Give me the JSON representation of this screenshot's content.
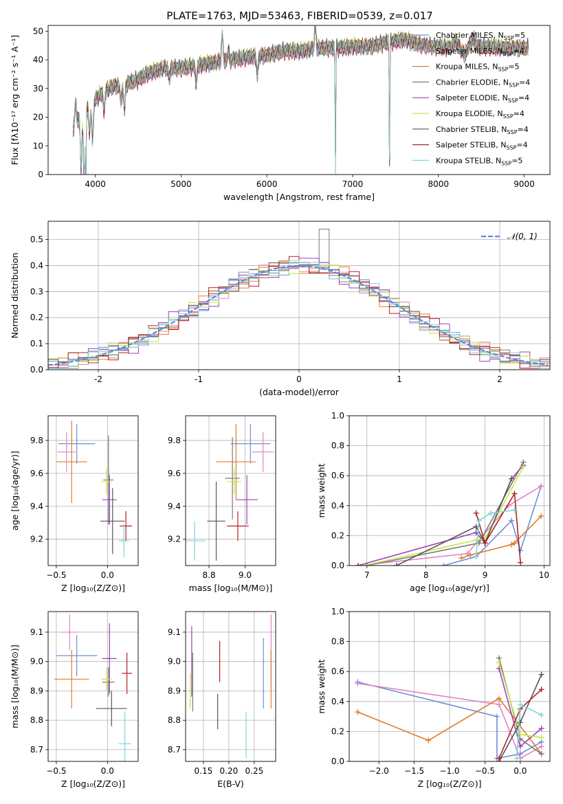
{
  "figure_title": "PLATE=1763, MJD=53463, FIBERID=0539, z=0.017",
  "colors": {
    "Chabrier MILES": "#6a8fd8",
    "Salpeter MILES": "#e083c2",
    "Kroupa MILES": "#e07b2a",
    "Chabrier ELODIE": "#7a7a7a",
    "Salpeter ELODIE": "#9b3fb8",
    "Kroupa ELODIE": "#c5e84a",
    "Chabrier STELIB": "#555555",
    "Salpeter STELIB": "#b22222",
    "Kroupa STELIB": "#7fd6d9",
    "normal": "#5b8bd6"
  },
  "chart_data": [
    {
      "id": "spectrum",
      "type": "line",
      "xlabel": "wavelength [Angstrom, rest frame]",
      "ylabel": "Flux [fλ10⁻¹⁷ erg cm⁻² s⁻¹ A⁻¹]",
      "xlim": [
        3450,
        9300
      ],
      "ylim": [
        0,
        52
      ],
      "xticks": [
        4000,
        5000,
        6000,
        7000,
        8000,
        9000
      ],
      "yticks": [
        0,
        10,
        20,
        30,
        40,
        50
      ],
      "legend_position": "top-right",
      "legend": [
        {
          "name": "Chabrier MILES",
          "label": "Chabrier MILES, N_SSP=5"
        },
        {
          "name": "Salpeter MILES",
          "label": "Salpeter MILES, N_SSP=4"
        },
        {
          "name": "Kroupa MILES",
          "label": "Kroupa MILES, N_SSP=5"
        },
        {
          "name": "Chabrier ELODIE",
          "label": "Chabrier ELODIE, N_SSP=4"
        },
        {
          "name": "Salpeter ELODIE",
          "label": "Salpeter ELODIE, N_SSP=4"
        },
        {
          "name": "Kroupa ELODIE",
          "label": "Kroupa ELODIE, N_SSP=4"
        },
        {
          "name": "Chabrier STELIB",
          "label": "Chabrier STELIB, N_SSP=4"
        },
        {
          "name": "Salpeter STELIB",
          "label": "Salpeter STELIB, N_SSP=4"
        },
        {
          "name": "Kroupa STELIB",
          "label": "Kroupa STELIB, N_SSP=5"
        }
      ],
      "continuum": [
        [
          3750,
          16
        ],
        [
          3800,
          19
        ],
        [
          3850,
          22
        ],
        [
          3900,
          23
        ],
        [
          3950,
          25
        ],
        [
          4000,
          26
        ],
        [
          4100,
          29
        ],
        [
          4200,
          30.5
        ],
        [
          4300,
          31
        ],
        [
          4400,
          32
        ],
        [
          4500,
          33
        ],
        [
          4600,
          35
        ],
        [
          4800,
          37
        ],
        [
          5000,
          37
        ],
        [
          5200,
          38
        ],
        [
          5400,
          39
        ],
        [
          5600,
          40
        ],
        [
          5800,
          41
        ],
        [
          6000,
          41.5
        ],
        [
          6200,
          43
        ],
        [
          6400,
          43
        ],
        [
          6600,
          44
        ],
        [
          6800,
          44
        ],
        [
          7000,
          44.5
        ],
        [
          7200,
          44.5
        ],
        [
          7400,
          46
        ],
        [
          7600,
          47
        ],
        [
          7800,
          45
        ],
        [
          8000,
          44.5
        ],
        [
          8200,
          44
        ],
        [
          8400,
          44.5
        ],
        [
          8600,
          44.5
        ],
        [
          8800,
          44
        ],
        [
          9000,
          44
        ],
        [
          9050,
          44
        ]
      ],
      "features": [
        {
          "x": 3770,
          "depth": -8
        },
        {
          "x": 3835,
          "depth": 20
        },
        {
          "x": 3870,
          "depth": 25
        },
        {
          "x": 3890,
          "depth": 30
        },
        {
          "x": 3933,
          "depth": 10
        },
        {
          "x": 3968,
          "depth": 14
        },
        {
          "x": 4102,
          "depth": 7
        },
        {
          "x": 4300,
          "depth": 6
        },
        {
          "x": 4340,
          "depth": 9
        },
        {
          "x": 4861,
          "depth": 4
        },
        {
          "x": 5175,
          "depth": 6
        },
        {
          "x": 5480,
          "depth": -9
        },
        {
          "x": 5550,
          "depth": -3
        },
        {
          "x": 5890,
          "depth": 7
        },
        {
          "x": 6563,
          "depth": -8
        },
        {
          "x": 6800,
          "depth": 44
        },
        {
          "x": 7430,
          "depth": 46
        }
      ],
      "y_offsets": [
        0.1,
        -0.3,
        0.4,
        -0.2,
        0.2,
        0.5,
        0.6,
        -0.5,
        -0.1
      ]
    },
    {
      "id": "residuals",
      "type": "histogram",
      "xlabel": "(data-model)/error",
      "ylabel": "Normed distribution",
      "xlim": [
        -2.5,
        2.5
      ],
      "ylim": [
        0,
        0.57
      ],
      "xticks": [
        -2,
        -1,
        0,
        1,
        2
      ],
      "yticks": [
        0.0,
        0.1,
        0.2,
        0.3,
        0.4,
        0.5
      ],
      "bin_width": 0.1,
      "legend_position": "top-right",
      "legend": [
        {
          "name": "normal",
          "label": "𝒩(0, 1)"
        }
      ],
      "peak": {
        "x": 0.25,
        "y": 0.54
      },
      "jitter": [
        0.02,
        -0.018,
        0.025,
        -0.015,
        0.03,
        -0.02,
        0.012,
        -0.028,
        0.018
      ]
    },
    {
      "id": "age-vs-Z",
      "type": "errorbar",
      "xlabel": "Z [log₁₀(Z/Z⊙)]",
      "ylabel": "age  [log₁₀(age/yr)]",
      "xlim": [
        -0.58,
        0.3
      ],
      "ylim": [
        9.04,
        9.95
      ],
      "xticks": [
        -0.5,
        0.0
      ],
      "yticks": [
        9.2,
        9.4,
        9.6,
        9.8
      ],
      "points": [
        {
          "name": "Chabrier MILES",
          "x": -0.3,
          "xerr": 0.18,
          "y": 9.78,
          "yerr": 0.12
        },
        {
          "name": "Salpeter MILES",
          "x": -0.4,
          "xerr": 0.09,
          "y": 9.73,
          "yerr": 0.12
        },
        {
          "name": "Kroupa MILES",
          "x": -0.35,
          "xerr": 0.15,
          "y": 9.67,
          "yerr": 0.25
        },
        {
          "name": "Chabrier ELODIE",
          "x": 0.01,
          "xerr": 0.05,
          "y": 9.56,
          "yerr": 0.27
        },
        {
          "name": "Salpeter ELODIE",
          "x": 0.02,
          "xerr": 0.07,
          "y": 9.44,
          "yerr": 0.15
        },
        {
          "name": "Kroupa ELODIE",
          "x": -0.01,
          "xerr": 0.05,
          "y": 9.55,
          "yerr": 0.08
        },
        {
          "name": "Chabrier STELIB",
          "x": 0.05,
          "xerr": 0.12,
          "y": 9.31,
          "yerr": 0.2
        },
        {
          "name": "Salpeter STELIB",
          "x": 0.18,
          "xerr": 0.06,
          "y": 9.28,
          "yerr": 0.09
        },
        {
          "name": "Kroupa STELIB",
          "x": 0.16,
          "xerr": 0.05,
          "y": 9.19,
          "yerr": 0.1
        }
      ]
    },
    {
      "id": "age-vs-mass",
      "type": "errorbar",
      "xlabel": "mass [log₁₀(M/M⊙)]",
      "ylabel": "",
      "xlim": [
        8.67,
        9.17
      ],
      "ylim": [
        9.04,
        9.95
      ],
      "xticks": [
        8.8,
        9.0
      ],
      "yticks": [
        9.2,
        9.4,
        9.6,
        9.8
      ],
      "points": [
        {
          "name": "Chabrier MILES",
          "x": 9.03,
          "xerr": 0.11,
          "y": 9.78,
          "yerr": 0.12
        },
        {
          "name": "Salpeter MILES",
          "x": 9.1,
          "xerr": 0.06,
          "y": 9.73,
          "yerr": 0.12
        },
        {
          "name": "Kroupa MILES",
          "x": 8.95,
          "xerr": 0.11,
          "y": 9.67,
          "yerr": 0.23
        },
        {
          "name": "Chabrier ELODIE",
          "x": 8.93,
          "xerr": 0.04,
          "y": 9.57,
          "yerr": 0.25
        },
        {
          "name": "Salpeter ELODIE",
          "x": 9.01,
          "xerr": 0.06,
          "y": 9.44,
          "yerr": 0.15
        },
        {
          "name": "Kroupa ELODIE",
          "x": 8.94,
          "xerr": 0.04,
          "y": 9.55,
          "yerr": 0.08
        },
        {
          "name": "Chabrier STELIB",
          "x": 8.84,
          "xerr": 0.05,
          "y": 9.31,
          "yerr": 0.24
        },
        {
          "name": "Salpeter STELIB",
          "x": 8.96,
          "xerr": 0.06,
          "y": 9.28,
          "yerr": 0.09
        },
        {
          "name": "Kroupa STELIB",
          "x": 8.72,
          "xerr": 0.06,
          "y": 9.19,
          "yerr": 0.12
        }
      ]
    },
    {
      "id": "massweight-vs-age",
      "type": "line",
      "xlabel": "age  [log₁₀(age/yr)]",
      "ylabel": "mass weight",
      "xlim": [
        6.7,
        10.1
      ],
      "ylim": [
        0,
        1
      ],
      "xticks": [
        7,
        8,
        9,
        10
      ],
      "yticks": [
        0.0,
        0.2,
        0.4,
        0.6,
        0.8,
        1.0
      ],
      "series": [
        {
          "name": "Chabrier MILES",
          "points": [
            [
              8.3,
              0.0
            ],
            [
              8.85,
              0.06
            ],
            [
              9.45,
              0.3
            ],
            [
              9.6,
              0.1
            ],
            [
              9.95,
              0.53
            ]
          ]
        },
        {
          "name": "Salpeter MILES",
          "points": [
            [
              6.85,
              0.0
            ],
            [
              8.7,
              0.08
            ],
            [
              9.4,
              0.4
            ],
            [
              9.95,
              0.53
            ]
          ]
        },
        {
          "name": "Kroupa MILES",
          "points": [
            [
              8.6,
              0.05
            ],
            [
              8.75,
              0.07
            ],
            [
              9.45,
              0.14
            ],
            [
              9.5,
              0.15
            ],
            [
              9.95,
              0.33
            ]
          ]
        },
        {
          "name": "Chabrier ELODIE",
          "points": [
            [
              7.0,
              0.0
            ],
            [
              8.9,
              0.15
            ],
            [
              9.65,
              0.69
            ]
          ]
        },
        {
          "name": "Salpeter ELODIE",
          "points": [
            [
              6.85,
              0.0
            ],
            [
              8.85,
              0.22
            ],
            [
              9.0,
              0.15
            ],
            [
              9.45,
              0.58
            ],
            [
              9.65,
              0.67
            ]
          ]
        },
        {
          "name": "Kroupa ELODIE",
          "points": [
            [
              6.95,
              0.0
            ],
            [
              8.85,
              0.17
            ],
            [
              9.0,
              0.18
            ],
            [
              9.65,
              0.66
            ]
          ]
        },
        {
          "name": "Chabrier STELIB",
          "points": [
            [
              7.5,
              0.0
            ],
            [
              8.85,
              0.26
            ],
            [
              9.0,
              0.15
            ],
            [
              9.45,
              0.58
            ]
          ]
        },
        {
          "name": "Salpeter STELIB",
          "points": [
            [
              8.85,
              0.35
            ],
            [
              9.0,
              0.15
            ],
            [
              9.5,
              0.48
            ],
            [
              9.6,
              0.02
            ]
          ]
        },
        {
          "name": "Kroupa STELIB",
          "points": [
            [
              8.85,
              0.06
            ],
            [
              8.9,
              0.3
            ],
            [
              9.1,
              0.35
            ],
            [
              9.5,
              0.37
            ]
          ]
        }
      ]
    },
    {
      "id": "mass-vs-Z",
      "type": "errorbar",
      "xlabel": "Z [log₁₀(Z/Z⊙)]",
      "ylabel": "mass [log₁₀(M/M⊙)]",
      "xlim": [
        -0.58,
        0.3
      ],
      "ylim": [
        8.66,
        9.17
      ],
      "xticks": [
        -0.5,
        0.0
      ],
      "yticks": [
        8.7,
        8.8,
        8.9,
        9.0,
        9.1
      ],
      "points": [
        {
          "name": "Chabrier MILES",
          "x": -0.3,
          "xerr": 0.2,
          "y": 9.02,
          "yerr": 0.07
        },
        {
          "name": "Salpeter MILES",
          "x": -0.37,
          "xerr": 0.08,
          "y": 9.1,
          "yerr": 0.06
        },
        {
          "name": "Kroupa MILES",
          "x": -0.35,
          "xerr": 0.17,
          "y": 8.94,
          "yerr": 0.1
        },
        {
          "name": "Chabrier ELODIE",
          "x": 0.01,
          "xerr": 0.06,
          "y": 8.93,
          "yerr": 0.05
        },
        {
          "name": "Salpeter ELODIE",
          "x": 0.02,
          "xerr": 0.07,
          "y": 9.01,
          "yerr": 0.12
        },
        {
          "name": "Kroupa ELODIE",
          "x": -0.01,
          "xerr": 0.05,
          "y": 8.94,
          "yerr": 0.04
        },
        {
          "name": "Chabrier STELIB",
          "x": 0.04,
          "xerr": 0.15,
          "y": 8.84,
          "yerr": 0.06
        },
        {
          "name": "Salpeter STELIB",
          "x": 0.19,
          "xerr": 0.05,
          "y": 8.96,
          "yerr": 0.07
        },
        {
          "name": "Kroupa STELIB",
          "x": 0.17,
          "xerr": 0.06,
          "y": 8.72,
          "yerr": 0.11
        }
      ]
    },
    {
      "id": "mass-vs-ebv",
      "type": "errorbar",
      "xlabel": "E(B-V)",
      "ylabel": "",
      "xlim": [
        0.115,
        0.292
      ],
      "ylim": [
        8.66,
        9.17
      ],
      "xticks": [
        0.15,
        0.2,
        0.25
      ],
      "yticks": [
        8.7,
        8.8,
        8.9,
        9.0,
        9.1
      ],
      "points": [
        {
          "name": "Chabrier MILES",
          "x": 0.268,
          "xerr": 0,
          "y": 8.96,
          "yerr": 0.12
        },
        {
          "name": "Salpeter MILES",
          "x": 0.283,
          "xerr": 0,
          "y": 9.04,
          "yerr": 0.12
        },
        {
          "name": "Kroupa MILES",
          "x": 0.283,
          "xerr": 0,
          "y": 8.94,
          "yerr": 0.1
        },
        {
          "name": "Chabrier ELODIE",
          "x": 0.129,
          "xerr": 0,
          "y": 8.93,
          "yerr": 0.1
        },
        {
          "name": "Salpeter ELODIE",
          "x": 0.127,
          "xerr": 0,
          "y": 9.0,
          "yerr": 0.12
        },
        {
          "name": "Kroupa ELODIE",
          "x": 0.124,
          "xerr": 0,
          "y": 8.9,
          "yerr": 0.06
        },
        {
          "name": "Chabrier STELIB",
          "x": 0.178,
          "xerr": 0,
          "y": 8.83,
          "yerr": 0.06
        },
        {
          "name": "Salpeter STELIB",
          "x": 0.182,
          "xerr": 0,
          "y": 9.0,
          "yerr": 0.07
        },
        {
          "name": "Kroupa STELIB",
          "x": 0.234,
          "xerr": 0,
          "y": 8.75,
          "yerr": 0.08
        }
      ]
    },
    {
      "id": "massweight-vs-Z",
      "type": "line",
      "xlabel": "Z [log₁₀(Z/Z⊙)]",
      "ylabel": "mass weight",
      "xlim": [
        -2.42,
        0.42
      ],
      "ylim": [
        0,
        1
      ],
      "xticks": [
        -2.0,
        -1.5,
        -1.0,
        -0.5,
        0.0
      ],
      "yticks": [
        0.0,
        0.2,
        0.4,
        0.6,
        0.8,
        1.0
      ],
      "series": [
        {
          "name": "Chabrier MILES",
          "points": [
            [
              -2.3,
              0.53
            ],
            [
              -0.33,
              0.3
            ],
            [
              -0.33,
              0.02
            ],
            [
              0.0,
              0.05
            ],
            [
              0.3,
              0.13
            ]
          ]
        },
        {
          "name": "Salpeter MILES",
          "points": [
            [
              -2.3,
              0.52
            ],
            [
              -0.3,
              0.38
            ],
            [
              0.0,
              0.02
            ],
            [
              0.3,
              0.1
            ]
          ]
        },
        {
          "name": "Kroupa MILES",
          "points": [
            [
              -2.3,
              0.33
            ],
            [
              -1.3,
              0.14
            ],
            [
              -0.3,
              0.42
            ],
            [
              0.3,
              0.05
            ]
          ]
        },
        {
          "name": "Chabrier ELODIE",
          "points": [
            [
              -0.3,
              0.69
            ],
            [
              0.0,
              0.15
            ],
            [
              0.3,
              0.05
            ]
          ]
        },
        {
          "name": "Salpeter ELODIE",
          "points": [
            [
              -0.3,
              0.62
            ],
            [
              0.0,
              0.1
            ],
            [
              0.3,
              0.22
            ]
          ]
        },
        {
          "name": "Kroupa ELODIE",
          "points": [
            [
              -0.3,
              0.66
            ],
            [
              0.0,
              0.18
            ],
            [
              0.3,
              0.16
            ]
          ]
        },
        {
          "name": "Chabrier STELIB",
          "points": [
            [
              -0.3,
              0.0
            ],
            [
              0.0,
              0.26
            ],
            [
              0.3,
              0.58
            ]
          ]
        },
        {
          "name": "Salpeter STELIB",
          "points": [
            [
              -0.3,
              0.02
            ],
            [
              0.0,
              0.35
            ],
            [
              0.3,
              0.48
            ]
          ]
        },
        {
          "name": "Kroupa STELIB",
          "points": [
            [
              -0.05,
              0.02
            ],
            [
              0.0,
              0.38
            ],
            [
              0.3,
              0.31
            ]
          ]
        }
      ]
    }
  ]
}
